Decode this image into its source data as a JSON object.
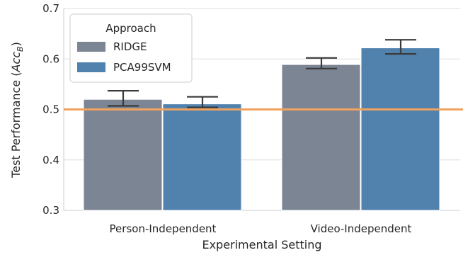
{
  "chart_data": {
    "type": "bar",
    "categories": [
      "Person-Independent",
      "Video-Independent"
    ],
    "series": [
      {
        "name": "RIDGE",
        "values": [
          0.52,
          0.589
        ],
        "error_low": [
          0.507,
          0.581
        ],
        "error_high": [
          0.537,
          0.602
        ],
        "color": "#7c8594"
      },
      {
        "name": "PCA99SVM",
        "values": [
          0.511,
          0.622
        ],
        "error_low": [
          0.504,
          0.61
        ],
        "error_high": [
          0.525,
          0.638
        ],
        "color": "#5182ad"
      }
    ],
    "xlabel": "Experimental Setting",
    "ylabel": "Test Performance (",
    "ylabel_math": "Acc",
    "ylabel_subscript": "B",
    "ylabel_close": ")",
    "ylim": [
      0.3,
      0.7
    ],
    "yticks": [
      0.3,
      0.4,
      0.5,
      0.6,
      0.7
    ],
    "ytick_labels": [
      "0.3",
      "0.4",
      "0.5",
      "0.6",
      "0.7"
    ],
    "reference_line": {
      "value": 0.5,
      "color": "#f0a25e"
    },
    "legend": {
      "title": "Approach",
      "placement": "top-left"
    },
    "grid": "horizontal"
  }
}
